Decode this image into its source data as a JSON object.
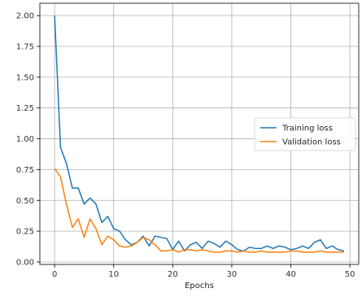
{
  "chart_data": {
    "type": "line",
    "title": "",
    "xlabel": "Epochs",
    "ylabel": "",
    "xlim": [
      -2.5,
      51.5
    ],
    "ylim": [
      -0.02,
      2.1
    ],
    "xticks": [
      0,
      10,
      20,
      30,
      40,
      50
    ],
    "yticks": [
      0.0,
      0.25,
      0.5,
      0.75,
      1.0,
      1.25,
      1.5,
      1.75,
      2.0
    ],
    "ytick_labels": [
      "0.00",
      "0.25",
      "0.50",
      "0.75",
      "1.00",
      "1.25",
      "1.50",
      "1.75",
      "2.00"
    ],
    "grid": true,
    "legend_position": "center-right",
    "series": [
      {
        "name": "Training loss",
        "color": "#1f77b4",
        "x": [
          0,
          1,
          2,
          3,
          4,
          5,
          6,
          7,
          8,
          9,
          10,
          11,
          12,
          13,
          14,
          15,
          16,
          17,
          18,
          19,
          20,
          21,
          22,
          23,
          24,
          25,
          26,
          27,
          28,
          29,
          30,
          31,
          32,
          33,
          34,
          35,
          36,
          37,
          38,
          39,
          40,
          41,
          42,
          43,
          44,
          45,
          46,
          47,
          48,
          49
        ],
        "values": [
          2.0,
          0.93,
          0.8,
          0.6,
          0.6,
          0.47,
          0.52,
          0.47,
          0.32,
          0.37,
          0.27,
          0.25,
          0.18,
          0.14,
          0.16,
          0.21,
          0.13,
          0.21,
          0.2,
          0.19,
          0.1,
          0.17,
          0.09,
          0.14,
          0.16,
          0.11,
          0.17,
          0.15,
          0.12,
          0.17,
          0.14,
          0.1,
          0.09,
          0.12,
          0.11,
          0.11,
          0.13,
          0.11,
          0.13,
          0.12,
          0.1,
          0.11,
          0.13,
          0.11,
          0.16,
          0.18,
          0.11,
          0.13,
          0.1,
          0.09
        ]
      },
      {
        "name": "Validation loss",
        "color": "#ff7f0e",
        "x": [
          0,
          1,
          2,
          3,
          4,
          5,
          6,
          7,
          8,
          9,
          10,
          11,
          12,
          13,
          14,
          15,
          16,
          17,
          18,
          19,
          20,
          21,
          22,
          23,
          24,
          25,
          26,
          27,
          28,
          29,
          30,
          31,
          32,
          33,
          34,
          35,
          36,
          37,
          38,
          39,
          40,
          41,
          42,
          43,
          44,
          45,
          46,
          47,
          48,
          49
        ],
        "values": [
          0.76,
          0.69,
          0.47,
          0.28,
          0.35,
          0.2,
          0.35,
          0.27,
          0.14,
          0.21,
          0.18,
          0.13,
          0.12,
          0.13,
          0.16,
          0.2,
          0.18,
          0.14,
          0.09,
          0.09,
          0.1,
          0.08,
          0.1,
          0.1,
          0.09,
          0.1,
          0.09,
          0.08,
          0.08,
          0.09,
          0.09,
          0.08,
          0.09,
          0.08,
          0.08,
          0.09,
          0.08,
          0.08,
          0.08,
          0.08,
          0.09,
          0.09,
          0.08,
          0.08,
          0.08,
          0.09,
          0.08,
          0.08,
          0.08,
          0.08
        ]
      }
    ]
  }
}
